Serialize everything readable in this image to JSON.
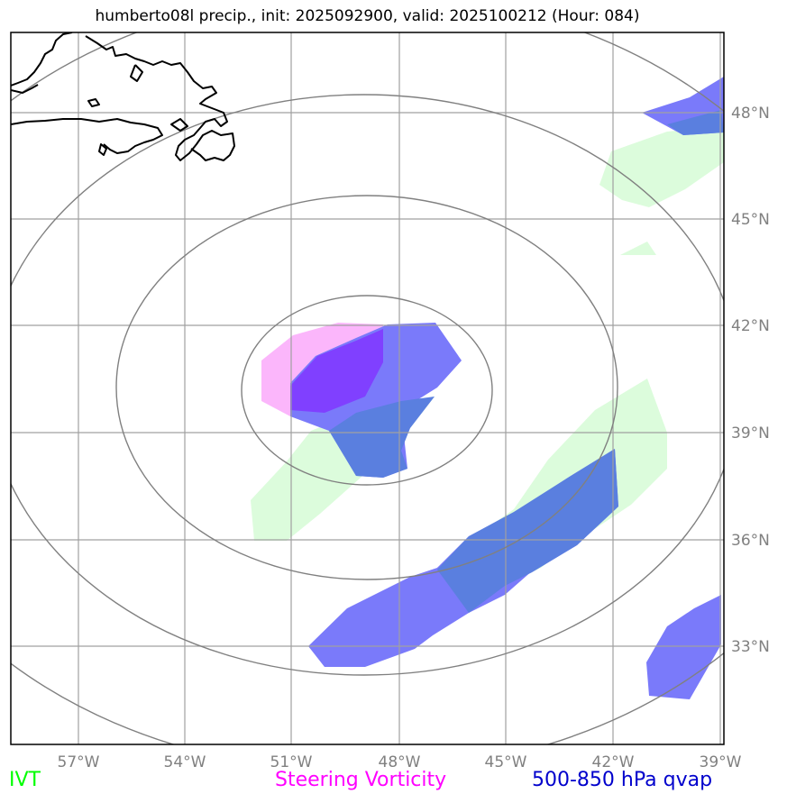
{
  "title": "humberto08l precip., init: 2025092900, valid: 2025100212 (Hour: 084)",
  "longitude_labels": [
    "57°W",
    "54°W",
    "51°W",
    "48°W",
    "45°W",
    "42°W",
    "39°W"
  ],
  "latitude_labels": [
    "48°N",
    "45°N",
    "42°N",
    "39°N",
    "36°N",
    "33°N"
  ],
  "legend": [
    {
      "label": "IVT",
      "color": "#00ff00"
    },
    {
      "label": "Steering Vorticity",
      "color": "#ff00ff"
    },
    {
      "label": "500-850 hPa qvap",
      "color": "#0000cc"
    }
  ],
  "colors": {
    "ivt_fill": "#dcfcdc",
    "vorticity_fill": "#fbb6fb",
    "qvap_fill": "#7a7afa",
    "overlap_fill": "#5a7fdf",
    "overlap_vort_fill": "#8040ff",
    "gridline": "#a0a0a0",
    "range_ring": "#808080",
    "coastline": "#000000"
  }
}
